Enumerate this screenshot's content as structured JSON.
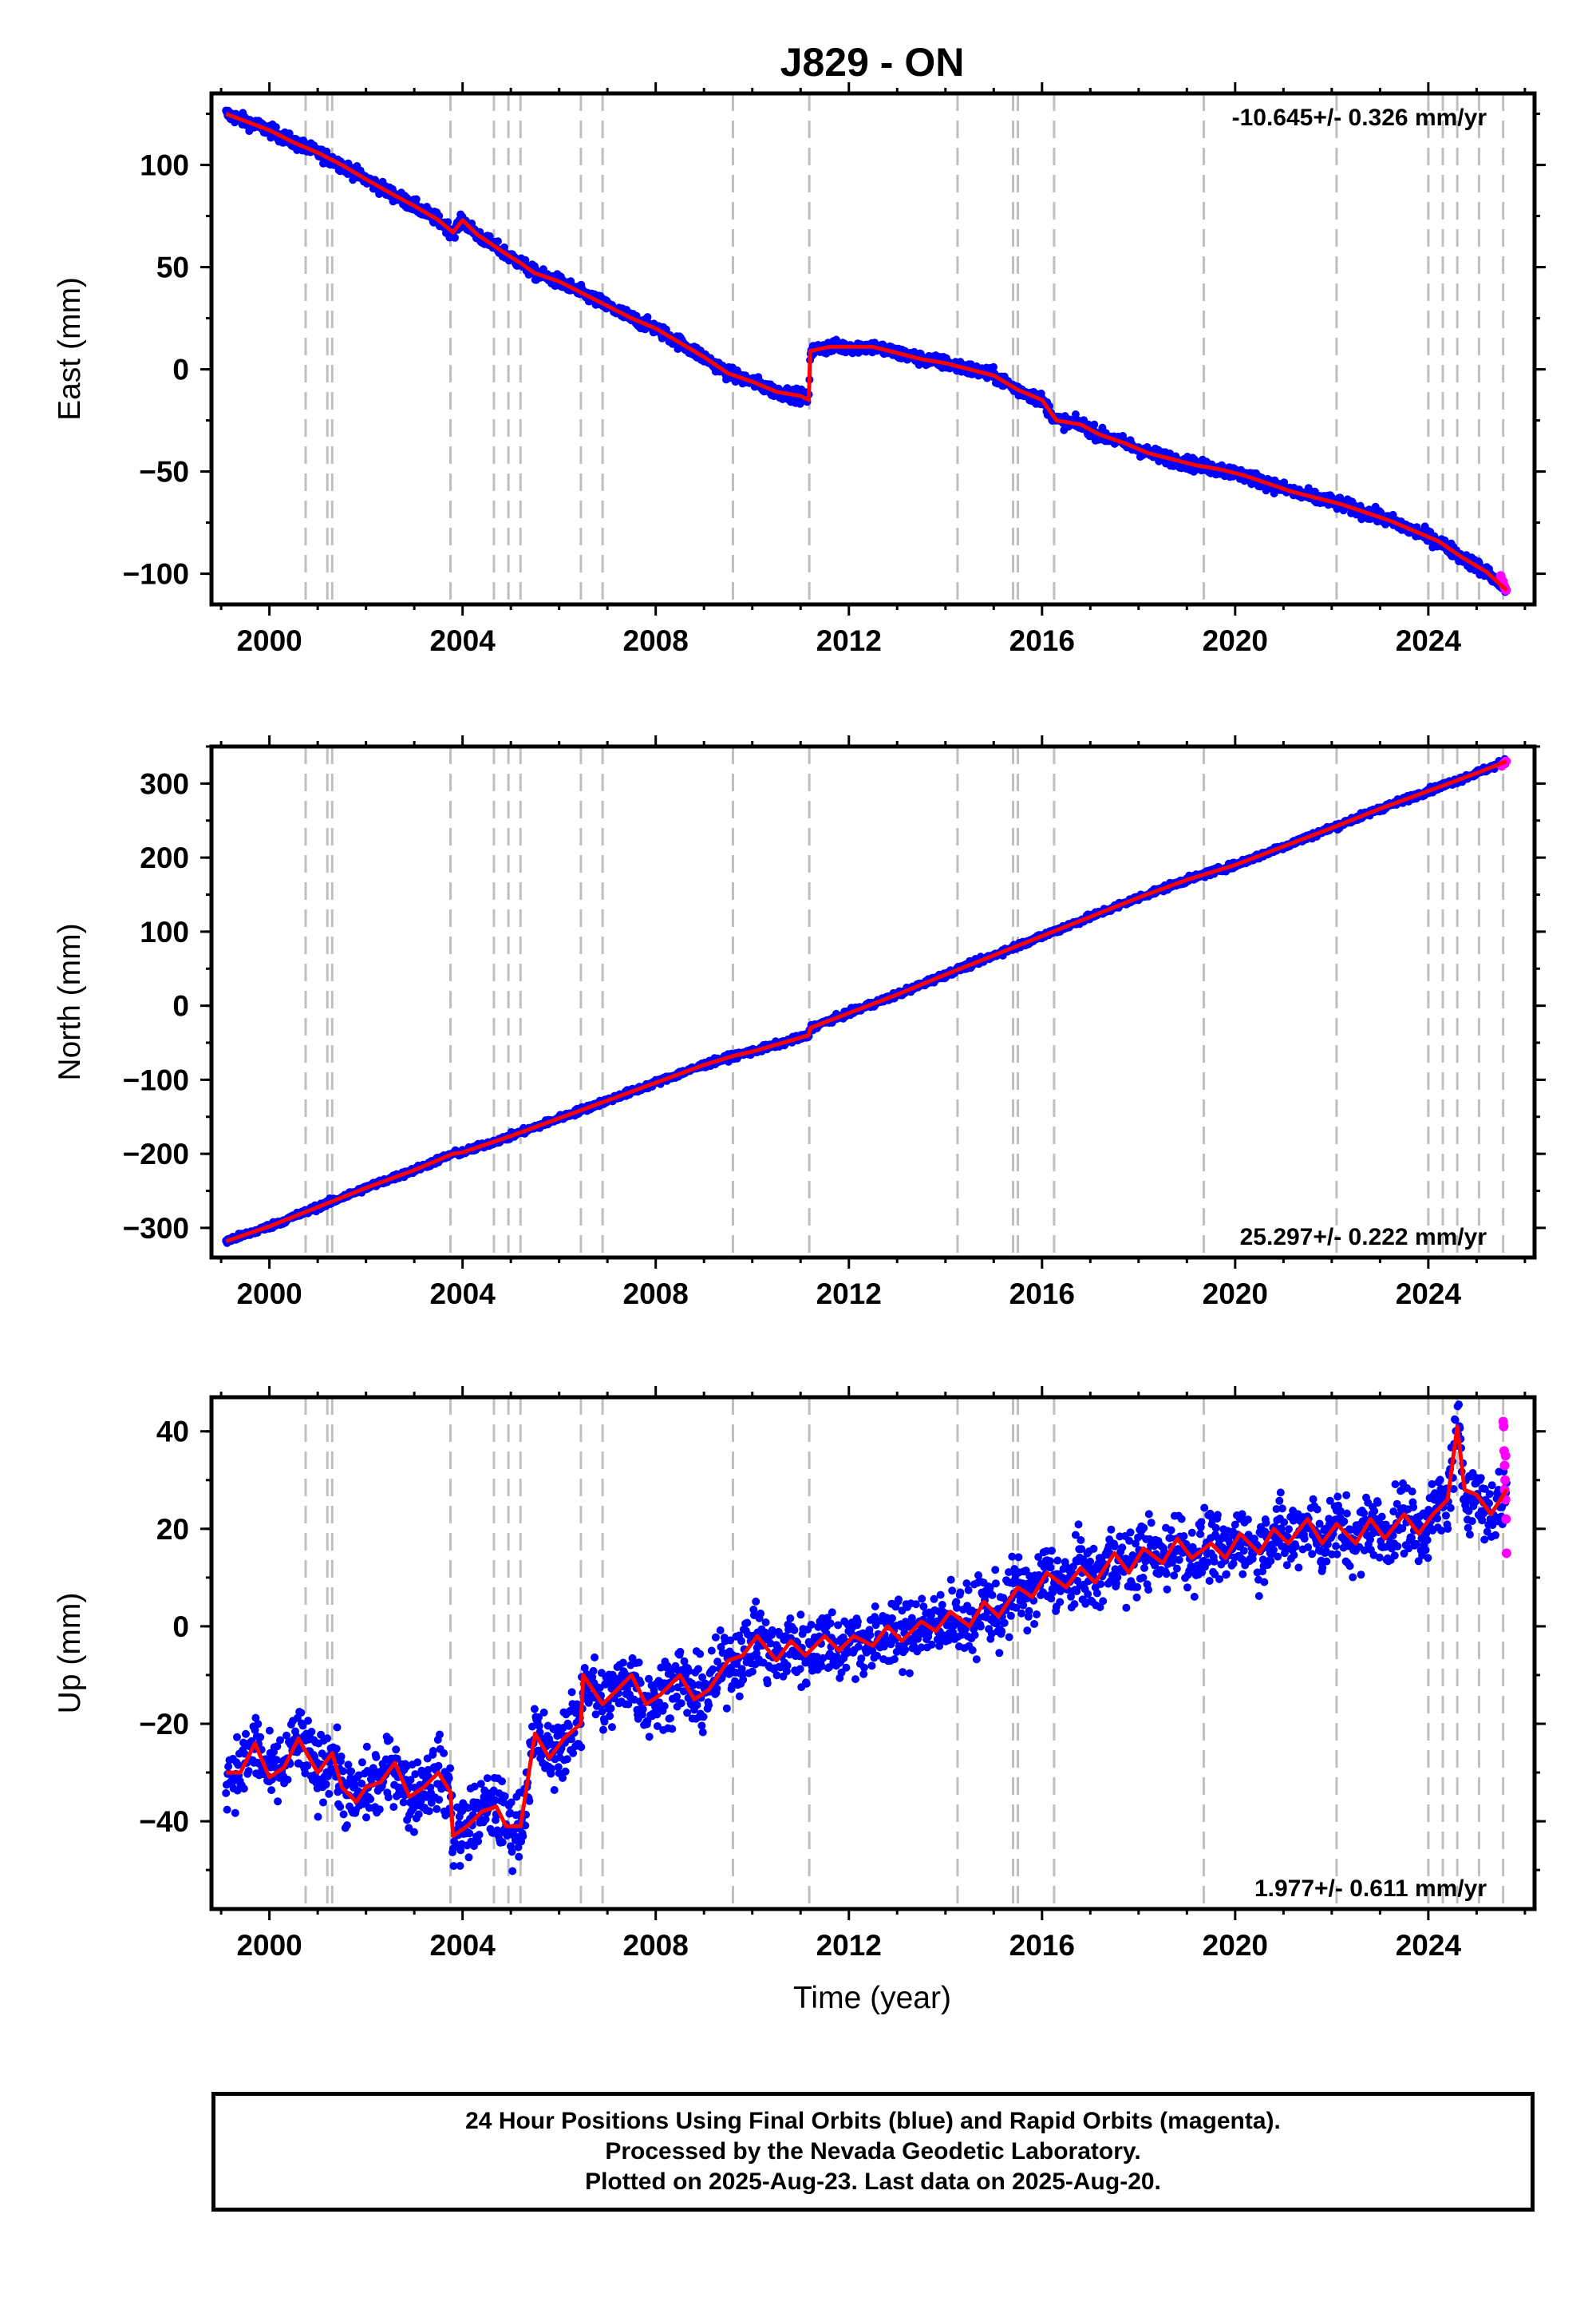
{
  "title": "J829 - ON",
  "xaxis_label": "Time (year)",
  "footer": {
    "line1": "24 Hour Positions Using Final Orbits (blue) and Rapid Orbits (magenta).",
    "line2": "Processed by the Nevada Geodetic Laboratory.",
    "line3": "Plotted on 2025-Aug-23. Last data on 2025-Aug-20."
  },
  "chart_data": [
    {
      "type": "scatter",
      "component": "east",
      "ylabel": "East (mm)",
      "rate_text": "-10.645+/- 0.326 mm/yr",
      "rate_position": "top-right",
      "xlim": [
        1998.8,
        2026.2
      ],
      "ylim": [
        -115,
        135
      ],
      "xticks": [
        2000,
        2004,
        2008,
        2012,
        2016,
        2020,
        2024
      ],
      "yticks": [
        -100,
        -50,
        0,
        50,
        100
      ],
      "scatter_half_width_mm": 4,
      "model_points": [
        [
          1999.1,
          125
        ],
        [
          2000.0,
          117
        ],
        [
          2000.5,
          111
        ],
        [
          2001.0,
          106
        ],
        [
          2001.5,
          100
        ],
        [
          2002.0,
          93
        ],
        [
          2002.6,
          85
        ],
        [
          2003.0,
          80
        ],
        [
          2003.5,
          73
        ],
        [
          2003.8,
          67
        ],
        [
          2004.0,
          73
        ],
        [
          2004.3,
          66
        ],
        [
          2004.8,
          58
        ],
        [
          2005.2,
          52
        ],
        [
          2005.5,
          47
        ],
        [
          2006.0,
          43
        ],
        [
          2006.5,
          37
        ],
        [
          2007.0,
          31
        ],
        [
          2007.5,
          25
        ],
        [
          2008.0,
          20
        ],
        [
          2008.5,
          13
        ],
        [
          2009.0,
          6
        ],
        [
          2009.5,
          -2
        ],
        [
          2010.0,
          -6
        ],
        [
          2010.5,
          -11
        ],
        [
          2011.0,
          -13
        ],
        [
          2011.17,
          -15
        ],
        [
          2011.2,
          9
        ],
        [
          2011.6,
          11
        ],
        [
          2012.0,
          11
        ],
        [
          2012.5,
          11
        ],
        [
          2013.0,
          8
        ],
        [
          2013.5,
          5
        ],
        [
          2014.0,
          3
        ],
        [
          2014.5,
          0
        ],
        [
          2015.0,
          -3
        ],
        [
          2015.5,
          -10
        ],
        [
          2016.0,
          -15
        ],
        [
          2016.3,
          -25
        ],
        [
          2016.8,
          -27
        ],
        [
          2017.2,
          -32
        ],
        [
          2017.7,
          -36
        ],
        [
          2018.2,
          -41
        ],
        [
          2018.7,
          -44
        ],
        [
          2019.2,
          -47
        ],
        [
          2019.7,
          -49
        ],
        [
          2020.2,
          -52
        ],
        [
          2020.7,
          -56
        ],
        [
          2021.2,
          -60
        ],
        [
          2021.7,
          -63
        ],
        [
          2022.2,
          -66
        ],
        [
          2022.7,
          -70
        ],
        [
          2023.2,
          -74
        ],
        [
          2023.7,
          -79
        ],
        [
          2024.2,
          -84
        ],
        [
          2024.7,
          -92
        ],
        [
          2025.2,
          -99
        ],
        [
          2025.62,
          -108
        ]
      ],
      "rapid_points": [
        [
          2025.5,
          -101
        ],
        [
          2025.52,
          -103
        ],
        [
          2025.55,
          -104
        ],
        [
          2025.57,
          -106
        ],
        [
          2025.59,
          -107
        ],
        [
          2025.61,
          -108
        ]
      ]
    },
    {
      "type": "scatter",
      "component": "north",
      "ylabel": "North (mm)",
      "rate_text": "25.297+/- 0.222 mm/yr",
      "rate_position": "bottom-right",
      "xlim": [
        1998.8,
        2026.2
      ],
      "ylim": [
        -340,
        350
      ],
      "xticks": [
        2000,
        2004,
        2008,
        2012,
        2016,
        2020,
        2024
      ],
      "yticks": [
        -300,
        -200,
        -100,
        0,
        100,
        200,
        300
      ],
      "scatter_half_width_mm": 5,
      "model_points": [
        [
          1999.1,
          -318
        ],
        [
          2000.0,
          -298
        ],
        [
          2001.0,
          -272
        ],
        [
          2002.0,
          -246
        ],
        [
          2003.0,
          -222
        ],
        [
          2003.8,
          -200
        ],
        [
          2004.0,
          -198
        ],
        [
          2005.0,
          -176
        ],
        [
          2006.0,
          -152
        ],
        [
          2007.0,
          -128
        ],
        [
          2008.0,
          -104
        ],
        [
          2009.0,
          -80
        ],
        [
          2009.6,
          -68
        ],
        [
          2010.0,
          -62
        ],
        [
          2011.17,
          -40
        ],
        [
          2011.2,
          -30
        ],
        [
          2012.0,
          -10
        ],
        [
          2013.0,
          15
        ],
        [
          2014.0,
          42
        ],
        [
          2015.0,
          68
        ],
        [
          2016.0,
          94
        ],
        [
          2017.0,
          120
        ],
        [
          2018.0,
          146
        ],
        [
          2019.0,
          170
        ],
        [
          2020.0,
          190
        ],
        [
          2021.0,
          215
        ],
        [
          2022.0,
          240
        ],
        [
          2023.0,
          266
        ],
        [
          2024.0,
          290
        ],
        [
          2025.0,
          314
        ],
        [
          2025.62,
          330
        ]
      ],
      "rapid_points": [
        [
          2025.52,
          324
        ],
        [
          2025.55,
          326
        ],
        [
          2025.58,
          328
        ],
        [
          2025.61,
          330
        ]
      ]
    },
    {
      "type": "scatter",
      "component": "up",
      "ylabel": "Up (mm)",
      "rate_text": "1.977+/- 0.611 mm/yr",
      "rate_position": "bottom-right",
      "xlim": [
        1998.8,
        2026.2
      ],
      "ylim": [
        -58,
        47
      ],
      "xticks": [
        2000,
        2004,
        2008,
        2012,
        2016,
        2020,
        2024
      ],
      "yticks": [
        -40,
        -20,
        0,
        20,
        40
      ],
      "scatter_half_width_mm": 9,
      "model_points": [
        [
          1999.1,
          -30
        ],
        [
          1999.4,
          -30
        ],
        [
          1999.7,
          -24
        ],
        [
          2000.0,
          -31
        ],
        [
          2000.3,
          -29
        ],
        [
          2000.6,
          -23
        ],
        [
          2001.0,
          -30
        ],
        [
          2001.3,
          -26
        ],
        [
          2001.5,
          -33
        ],
        [
          2001.8,
          -36
        ],
        [
          2002.0,
          -33
        ],
        [
          2002.3,
          -32
        ],
        [
          2002.6,
          -28
        ],
        [
          2002.9,
          -35
        ],
        [
          2003.2,
          -33
        ],
        [
          2003.5,
          -30
        ],
        [
          2003.75,
          -34
        ],
        [
          2003.8,
          -43
        ],
        [
          2004.1,
          -41
        ],
        [
          2004.4,
          -38
        ],
        [
          2004.7,
          -37
        ],
        [
          2004.9,
          -41
        ],
        [
          2005.2,
          -41
        ],
        [
          2005.5,
          -22
        ],
        [
          2005.8,
          -27
        ],
        [
          2006.1,
          -23
        ],
        [
          2006.45,
          -20
        ],
        [
          2006.5,
          -10
        ],
        [
          2006.9,
          -16
        ],
        [
          2007.2,
          -13
        ],
        [
          2007.5,
          -10
        ],
        [
          2007.8,
          -16
        ],
        [
          2008.1,
          -14
        ],
        [
          2008.5,
          -10
        ],
        [
          2008.8,
          -15
        ],
        [
          2009.1,
          -13
        ],
        [
          2009.5,
          -7
        ],
        [
          2009.8,
          -6
        ],
        [
          2010.1,
          -2
        ],
        [
          2010.5,
          -7
        ],
        [
          2010.8,
          -3
        ],
        [
          2011.1,
          -6
        ],
        [
          2011.5,
          -2
        ],
        [
          2011.8,
          -5
        ],
        [
          2012.1,
          -2
        ],
        [
          2012.5,
          -4
        ],
        [
          2012.8,
          0
        ],
        [
          2013.1,
          -3
        ],
        [
          2013.5,
          1
        ],
        [
          2013.8,
          -1
        ],
        [
          2014.1,
          3
        ],
        [
          2014.5,
          0
        ],
        [
          2014.8,
          5
        ],
        [
          2015.1,
          2
        ],
        [
          2015.5,
          8
        ],
        [
          2015.8,
          6
        ],
        [
          2016.1,
          11
        ],
        [
          2016.5,
          8
        ],
        [
          2016.8,
          12
        ],
        [
          2017.1,
          9
        ],
        [
          2017.5,
          15
        ],
        [
          2017.8,
          11
        ],
        [
          2018.1,
          16
        ],
        [
          2018.5,
          13
        ],
        [
          2018.8,
          18
        ],
        [
          2019.1,
          14
        ],
        [
          2019.5,
          17
        ],
        [
          2019.8,
          14
        ],
        [
          2020.1,
          19
        ],
        [
          2020.5,
          15
        ],
        [
          2020.8,
          20
        ],
        [
          2021.1,
          17
        ],
        [
          2021.5,
          22
        ],
        [
          2021.8,
          17
        ],
        [
          2022.1,
          21
        ],
        [
          2022.5,
          17
        ],
        [
          2022.8,
          22
        ],
        [
          2023.1,
          18
        ],
        [
          2023.5,
          23
        ],
        [
          2023.8,
          19
        ],
        [
          2024.1,
          23
        ],
        [
          2024.4,
          26
        ],
        [
          2024.6,
          41
        ],
        [
          2024.75,
          28
        ],
        [
          2025.0,
          27
        ],
        [
          2025.3,
          23
        ],
        [
          2025.62,
          28
        ]
      ],
      "rapid_points": [
        [
          2025.55,
          42
        ],
        [
          2025.56,
          41
        ],
        [
          2025.57,
          36
        ],
        [
          2025.58,
          33
        ],
        [
          2025.59,
          30
        ],
        [
          2025.6,
          26
        ],
        [
          2025.61,
          22
        ],
        [
          2025.62,
          15
        ],
        [
          2025.6,
          35
        ],
        [
          2025.58,
          28
        ]
      ]
    }
  ],
  "event_lines_years": [
    2000.75,
    2001.2,
    2001.3,
    2003.75,
    2004.65,
    2004.95,
    2005.2,
    2006.45,
    2006.9,
    2009.6,
    2011.18,
    2014.25,
    2015.4,
    2015.5,
    2016.25,
    2019.35,
    2022.1,
    2024.0,
    2024.3,
    2024.6,
    2025.05,
    2025.55
  ],
  "colors": {
    "final_orbits": "#0000ff",
    "rapid_orbits": "#ff00ff",
    "model": "#ff0000",
    "event_lines": "#bfbfbf",
    "frame": "#000000"
  }
}
